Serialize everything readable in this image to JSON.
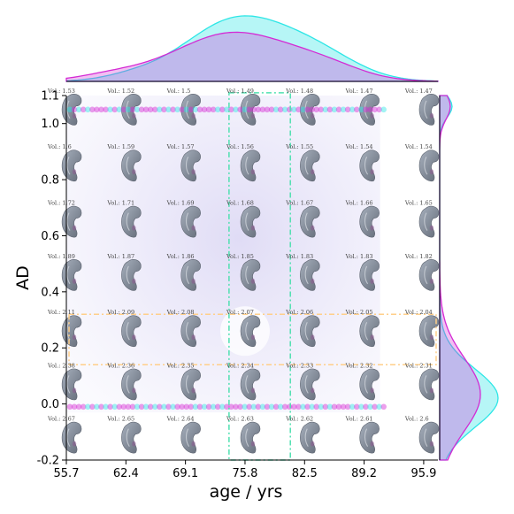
{
  "chart_data": {
    "type": "scatter",
    "xlabel": "age / yrs",
    "ylabel": "AD",
    "xlim": [
      55.7,
      97.5
    ],
    "ylim": [
      -0.2,
      1.1
    ],
    "x_ticks": [
      "55.7",
      "62.4",
      "69.1",
      "75.8",
      "82.5",
      "89.2",
      "95.9"
    ],
    "y_ticks": [
      "-0.2",
      "0.0",
      "0.2",
      "0.4",
      "0.6",
      "0.8",
      "1.0"
    ],
    "y_tick_values": [
      -0.2,
      0.0,
      0.2,
      0.4,
      0.6,
      0.8,
      1.0
    ],
    "grid_x_values": [
      55.7,
      62.4,
      69.1,
      75.8,
      82.5,
      89.2,
      95.9
    ],
    "grid_y_values": [
      1.05,
      0.85,
      0.65,
      0.46,
      0.26,
      0.07,
      -0.12
    ],
    "volume_grid": [
      [
        "Vol.: 1.53",
        "Vol.: 1.52",
        "Vol.: 1.5",
        "Vol.: 1.49",
        "Vol.: 1.48",
        "Vol.: 1.47",
        "Vol.: 1.47"
      ],
      [
        "Vol.: 1.6",
        "Vol.: 1.59",
        "Vol.: 1.57",
        "Vol.: 1.56",
        "Vol.: 1.55",
        "Vol.: 1.54",
        "Vol.: 1.54"
      ],
      [
        "Vol.: 1.72",
        "Vol.: 1.71",
        "Vol.: 1.69",
        "Vol.: 1.68",
        "Vol.: 1.67",
        "Vol.: 1.66",
        "Vol.: 1.65"
      ],
      [
        "Vol.: 1.89",
        "Vol.: 1.87",
        "Vol.: 1.86",
        "Vol.: 1.85",
        "Vol.: 1.83",
        "Vol.: 1.83",
        "Vol.: 1.82"
      ],
      [
        "Vol.: 2.11",
        "Vol.: 2.09",
        "Vol.: 2.08",
        "Vol.: 2.07",
        "Vol.: 2.06",
        "Vol.: 2.05",
        "Vol.: 2.04"
      ],
      [
        "Vol.: 2.38",
        "Vol.: 2.36",
        "Vol.: 2.35",
        "Vol.: 2.34",
        "Vol.: 2.33",
        "Vol.: 2.32",
        "Vol.: 2.31"
      ],
      [
        "Vol.: 2.67",
        "Vol.: 2.65",
        "Vol.: 2.64",
        "Vol.: 2.63",
        "Vol.: 2.62",
        "Vol.: 2.61",
        "Vol.: 2.6"
      ]
    ],
    "scatter_rows": [
      1.05,
      -0.01
    ],
    "scatter_x_range": [
      55.7,
      91.0
    ],
    "highlight_x_range": [
      74.0,
      80.9
    ],
    "highlight_y_range": [
      0.14,
      0.32
    ],
    "highlight_point": [
      75.8,
      0.26
    ],
    "series": [
      {
        "name": "",
        "color": "#22e5e5"
      },
      {
        "name": "",
        "color": "#dd22dd"
      }
    ],
    "colors": {
      "cyan": "#2ee6e6",
      "magenta": "#d42ad4",
      "violet_fill": "#a98ef0",
      "box_green": "#4fe0b0",
      "box_orange": "#ffcf8a",
      "shape": "#7f8896"
    }
  }
}
